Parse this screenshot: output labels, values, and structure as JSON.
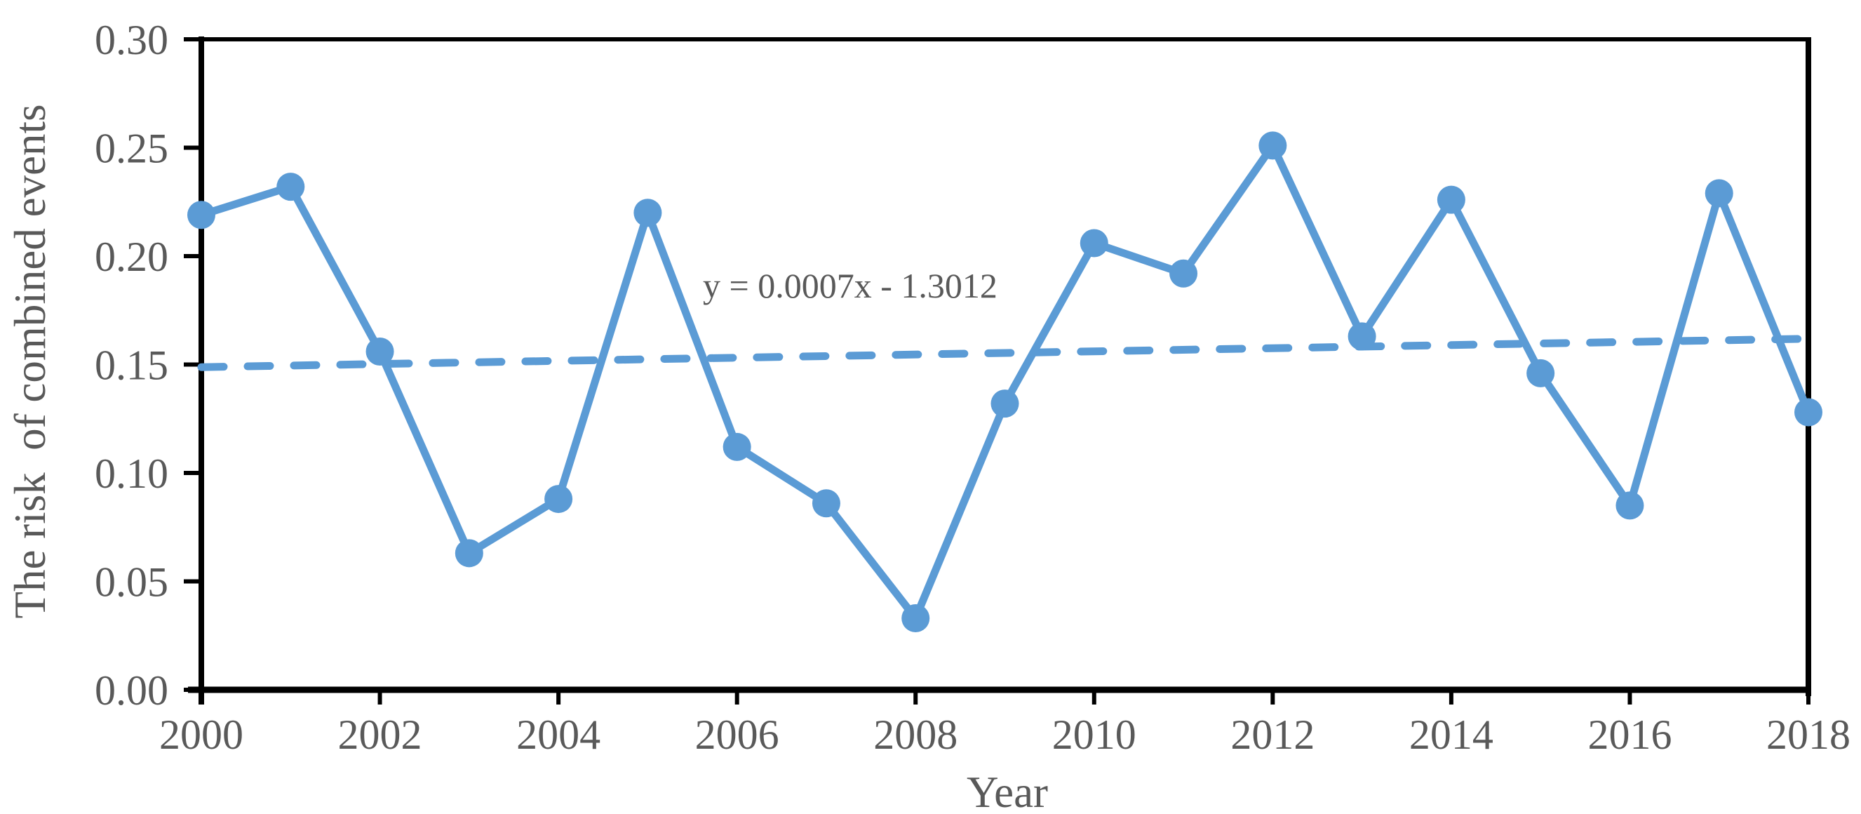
{
  "figure": {
    "type": "line-chart-figure",
    "background": "#ffffff"
  },
  "colors": {
    "series": "#5B9BD5",
    "trendline": "#5B9BD5",
    "axis": "#000000",
    "tick_text": "#595959",
    "title_text": "#595959",
    "equation_text": "#595959"
  },
  "y_axis": {
    "title": "The risk  of combined events",
    "ticks": [
      {
        "label": "0.30",
        "value": 0.3
      },
      {
        "label": "0.25",
        "value": 0.25
      },
      {
        "label": "0.20",
        "value": 0.2
      },
      {
        "label": "0.15",
        "value": 0.15
      },
      {
        "label": "0.10",
        "value": 0.1
      },
      {
        "label": "0.05",
        "value": 0.05
      },
      {
        "label": "0.00",
        "value": 0.0
      }
    ]
  },
  "x_axis": {
    "title": "Year",
    "ticks": [
      {
        "label": "2000",
        "value": 2000
      },
      {
        "label": "2002",
        "value": 2002
      },
      {
        "label": "2004",
        "value": 2004
      },
      {
        "label": "2006",
        "value": 2006
      },
      {
        "label": "2008",
        "value": 2008
      },
      {
        "label": "2010",
        "value": 2010
      },
      {
        "label": "2012",
        "value": 2012
      },
      {
        "label": "2014",
        "value": 2014
      },
      {
        "label": "2016",
        "value": 2016
      },
      {
        "label": "2018",
        "value": 2018
      }
    ]
  },
  "annotation": {
    "trend_equation": "y = 0.0007x - 1.3012"
  },
  "chart_data": {
    "type": "line",
    "title": "",
    "xlabel": "Year",
    "ylabel": "The risk  of combined events",
    "xlim": [
      2000,
      2018
    ],
    "ylim": [
      0,
      0.3
    ],
    "x_tick_interval": 2,
    "y_tick_interval": 0.05,
    "grid": false,
    "legend": false,
    "x": [
      2000,
      2001,
      2002,
      2003,
      2004,
      2005,
      2006,
      2007,
      2008,
      2009,
      2010,
      2011,
      2012,
      2013,
      2014,
      2015,
      2016,
      2017,
      2018
    ],
    "series": [
      {
        "name": "The risk of combined events",
        "marker": "circle",
        "color": "#5B9BD5",
        "values": [
          0.219,
          0.232,
          0.156,
          0.063,
          0.088,
          0.22,
          0.112,
          0.086,
          0.033,
          0.132,
          0.206,
          0.192,
          0.251,
          0.163,
          0.226,
          0.146,
          0.085,
          0.229,
          0.128
        ]
      }
    ],
    "trendline": {
      "label": "y = 0.0007x - 1.3012",
      "style": "dashed",
      "color": "#5B9BD5",
      "x1": 2000,
      "y1": 0.1488,
      "x2": 2018,
      "y2": 0.1619
    }
  }
}
